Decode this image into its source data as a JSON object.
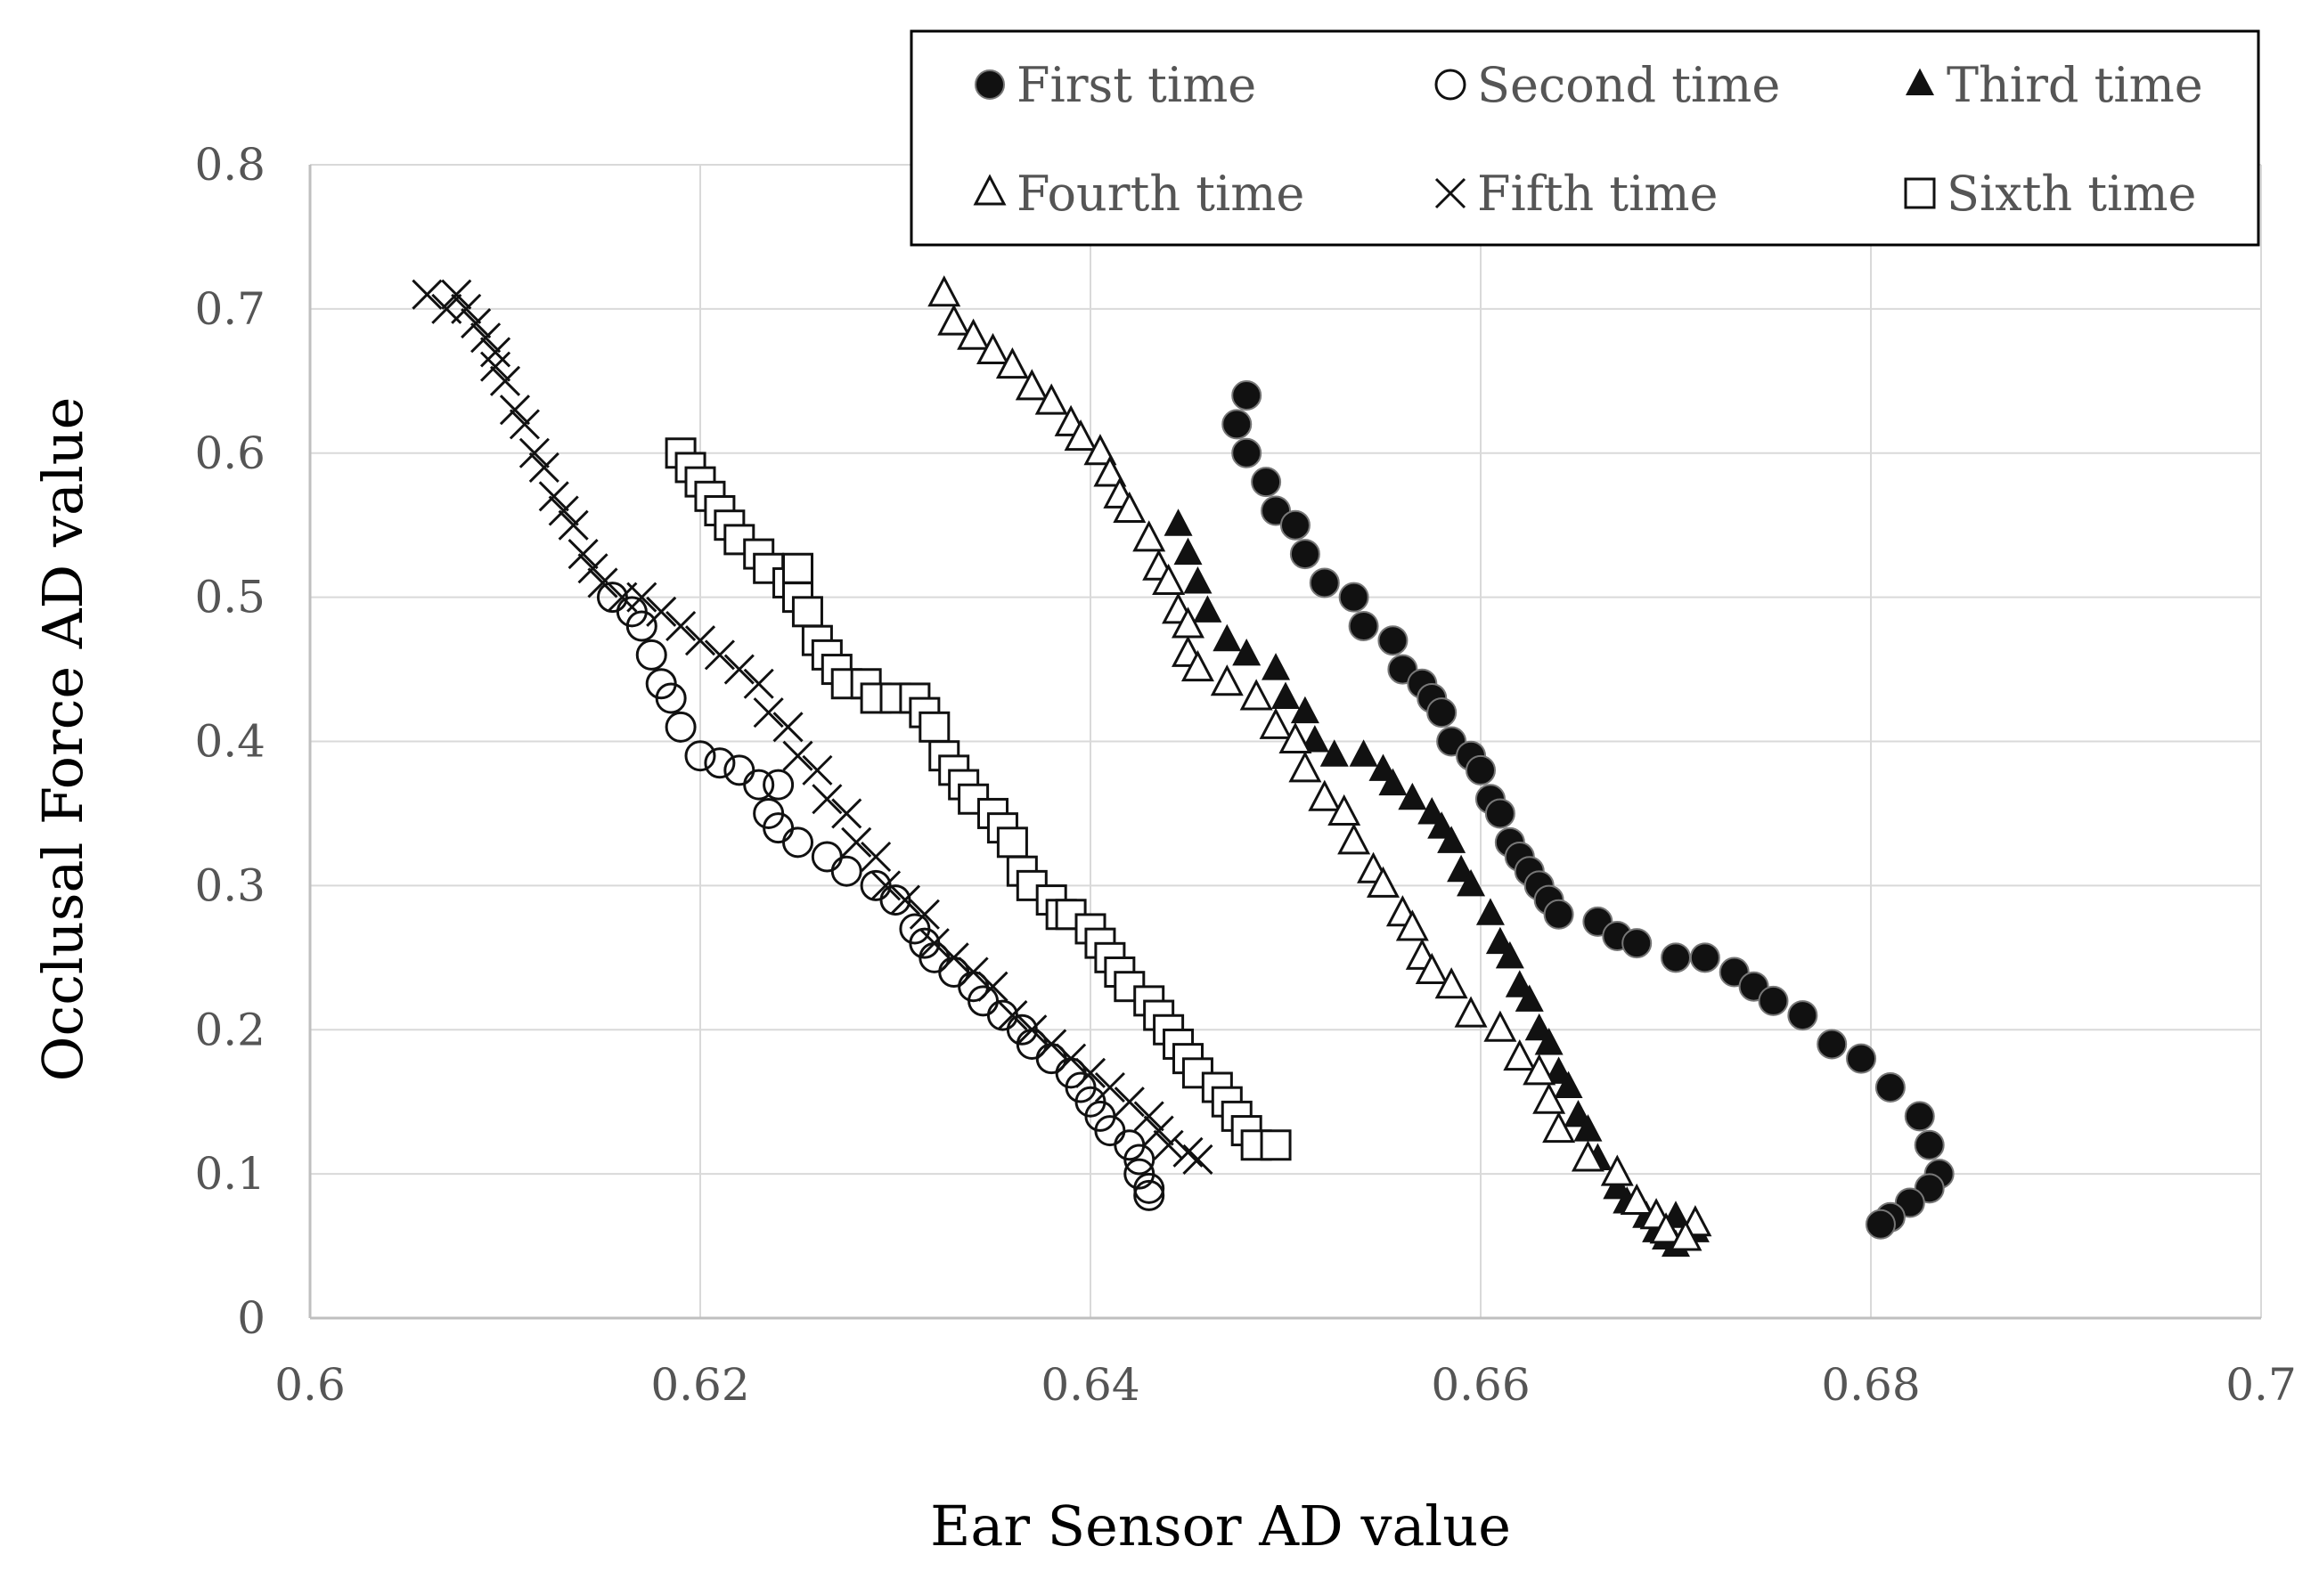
{
  "chart_data": {
    "type": "scatter",
    "xlabel": "Ear Sensor AD value",
    "ylabel": "Occlusal Force AD value",
    "xlim": [
      0.6,
      0.7
    ],
    "ylim": [
      0,
      0.8
    ],
    "x_ticks": [
      "0.6",
      "0.62",
      "0.64",
      "0.66",
      "0.68",
      "0.7"
    ],
    "y_ticks": [
      "0",
      "0.1",
      "0.2",
      "0.3",
      "0.4",
      "0.5",
      "0.6",
      "0.7",
      "0.8"
    ],
    "grid": true,
    "legend_position": "top-right",
    "series": [
      {
        "name": "First time",
        "marker": "filled-circle",
        "color": "#111111",
        "points": [
          [
            0.648,
            0.64
          ],
          [
            0.6475,
            0.62
          ],
          [
            0.648,
            0.6
          ],
          [
            0.649,
            0.58
          ],
          [
            0.6495,
            0.56
          ],
          [
            0.6505,
            0.55
          ],
          [
            0.651,
            0.53
          ],
          [
            0.652,
            0.51
          ],
          [
            0.6535,
            0.5
          ],
          [
            0.654,
            0.48
          ],
          [
            0.6555,
            0.47
          ],
          [
            0.656,
            0.45
          ],
          [
            0.657,
            0.44
          ],
          [
            0.6575,
            0.43
          ],
          [
            0.658,
            0.42
          ],
          [
            0.6585,
            0.4
          ],
          [
            0.6595,
            0.39
          ],
          [
            0.66,
            0.38
          ],
          [
            0.6605,
            0.36
          ],
          [
            0.661,
            0.35
          ],
          [
            0.6615,
            0.33
          ],
          [
            0.662,
            0.32
          ],
          [
            0.6625,
            0.31
          ],
          [
            0.663,
            0.3
          ],
          [
            0.6635,
            0.29
          ],
          [
            0.664,
            0.28
          ],
          [
            0.666,
            0.275
          ],
          [
            0.667,
            0.265
          ],
          [
            0.668,
            0.26
          ],
          [
            0.67,
            0.25
          ],
          [
            0.6715,
            0.25
          ],
          [
            0.673,
            0.24
          ],
          [
            0.674,
            0.23
          ],
          [
            0.675,
            0.22
          ],
          [
            0.6765,
            0.21
          ],
          [
            0.678,
            0.19
          ],
          [
            0.6795,
            0.18
          ],
          [
            0.681,
            0.16
          ],
          [
            0.6825,
            0.14
          ],
          [
            0.683,
            0.12
          ],
          [
            0.6835,
            0.1
          ],
          [
            0.683,
            0.09
          ],
          [
            0.682,
            0.08
          ],
          [
            0.681,
            0.07
          ],
          [
            0.6805,
            0.065
          ]
        ]
      },
      {
        "name": "Second time",
        "marker": "open-circle",
        "color": "#111111",
        "points": [
          [
            0.6155,
            0.5
          ],
          [
            0.6165,
            0.49
          ],
          [
            0.617,
            0.48
          ],
          [
            0.6175,
            0.46
          ],
          [
            0.618,
            0.44
          ],
          [
            0.6185,
            0.43
          ],
          [
            0.619,
            0.41
          ],
          [
            0.62,
            0.39
          ],
          [
            0.621,
            0.385
          ],
          [
            0.622,
            0.38
          ],
          [
            0.623,
            0.37
          ],
          [
            0.624,
            0.37
          ],
          [
            0.6235,
            0.35
          ],
          [
            0.624,
            0.34
          ],
          [
            0.625,
            0.33
          ],
          [
            0.6265,
            0.32
          ],
          [
            0.6275,
            0.31
          ],
          [
            0.629,
            0.3
          ],
          [
            0.63,
            0.29
          ],
          [
            0.631,
            0.27
          ],
          [
            0.6315,
            0.26
          ],
          [
            0.632,
            0.25
          ],
          [
            0.633,
            0.24
          ],
          [
            0.634,
            0.23
          ],
          [
            0.6345,
            0.22
          ],
          [
            0.6355,
            0.21
          ],
          [
            0.6365,
            0.2
          ],
          [
            0.637,
            0.19
          ],
          [
            0.638,
            0.18
          ],
          [
            0.639,
            0.17
          ],
          [
            0.6395,
            0.16
          ],
          [
            0.64,
            0.15
          ],
          [
            0.6405,
            0.14
          ],
          [
            0.641,
            0.13
          ],
          [
            0.642,
            0.12
          ],
          [
            0.6425,
            0.11
          ],
          [
            0.6425,
            0.1
          ],
          [
            0.643,
            0.09
          ],
          [
            0.643,
            0.085
          ]
        ]
      },
      {
        "name": "Third time",
        "marker": "filled-triangle",
        "color": "#111111",
        "points": [
          [
            0.6445,
            0.55
          ],
          [
            0.645,
            0.53
          ],
          [
            0.6455,
            0.51
          ],
          [
            0.646,
            0.49
          ],
          [
            0.647,
            0.47
          ],
          [
            0.648,
            0.46
          ],
          [
            0.6495,
            0.45
          ],
          [
            0.65,
            0.43
          ],
          [
            0.651,
            0.42
          ],
          [
            0.6515,
            0.4
          ],
          [
            0.6525,
            0.39
          ],
          [
            0.654,
            0.39
          ],
          [
            0.655,
            0.38
          ],
          [
            0.6555,
            0.37
          ],
          [
            0.6565,
            0.36
          ],
          [
            0.6575,
            0.35
          ],
          [
            0.658,
            0.34
          ],
          [
            0.6585,
            0.33
          ],
          [
            0.659,
            0.31
          ],
          [
            0.6595,
            0.3
          ],
          [
            0.6605,
            0.28
          ],
          [
            0.661,
            0.26
          ],
          [
            0.6615,
            0.25
          ],
          [
            0.662,
            0.23
          ],
          [
            0.6625,
            0.22
          ],
          [
            0.663,
            0.2
          ],
          [
            0.6635,
            0.19
          ],
          [
            0.664,
            0.17
          ],
          [
            0.6645,
            0.16
          ],
          [
            0.665,
            0.14
          ],
          [
            0.6655,
            0.13
          ],
          [
            0.666,
            0.11
          ],
          [
            0.667,
            0.09
          ],
          [
            0.6675,
            0.08
          ],
          [
            0.6685,
            0.07
          ],
          [
            0.669,
            0.06
          ],
          [
            0.6695,
            0.055
          ],
          [
            0.67,
            0.05
          ],
          [
            0.671,
            0.06
          ],
          [
            0.67,
            0.07
          ]
        ]
      },
      {
        "name": "Fourth time",
        "marker": "open-triangle",
        "color": "#111111",
        "points": [
          [
            0.6325,
            0.71
          ],
          [
            0.633,
            0.69
          ],
          [
            0.634,
            0.68
          ],
          [
            0.635,
            0.67
          ],
          [
            0.636,
            0.66
          ],
          [
            0.637,
            0.645
          ],
          [
            0.638,
            0.635
          ],
          [
            0.639,
            0.62
          ],
          [
            0.6395,
            0.61
          ],
          [
            0.6405,
            0.6
          ],
          [
            0.641,
            0.585
          ],
          [
            0.6415,
            0.57
          ],
          [
            0.642,
            0.56
          ],
          [
            0.643,
            0.54
          ],
          [
            0.6435,
            0.52
          ],
          [
            0.644,
            0.51
          ],
          [
            0.6445,
            0.49
          ],
          [
            0.645,
            0.48
          ],
          [
            0.645,
            0.46
          ],
          [
            0.6455,
            0.45
          ],
          [
            0.647,
            0.44
          ],
          [
            0.6485,
            0.43
          ],
          [
            0.6495,
            0.41
          ],
          [
            0.6505,
            0.4
          ],
          [
            0.651,
            0.38
          ],
          [
            0.652,
            0.36
          ],
          [
            0.653,
            0.35
          ],
          [
            0.6535,
            0.33
          ],
          [
            0.6545,
            0.31
          ],
          [
            0.655,
            0.3
          ],
          [
            0.656,
            0.28
          ],
          [
            0.6565,
            0.27
          ],
          [
            0.657,
            0.25
          ],
          [
            0.6575,
            0.24
          ],
          [
            0.6585,
            0.23
          ],
          [
            0.6595,
            0.21
          ],
          [
            0.661,
            0.2
          ],
          [
            0.662,
            0.18
          ],
          [
            0.663,
            0.17
          ],
          [
            0.6635,
            0.15
          ],
          [
            0.664,
            0.13
          ],
          [
            0.6655,
            0.11
          ],
          [
            0.667,
            0.1
          ],
          [
            0.668,
            0.08
          ],
          [
            0.669,
            0.07
          ],
          [
            0.6695,
            0.06
          ],
          [
            0.671,
            0.065
          ],
          [
            0.6705,
            0.055
          ]
        ]
      },
      {
        "name": "Fifth time",
        "marker": "cross",
        "color": "#111111",
        "points": [
          [
            0.606,
            0.71
          ],
          [
            0.607,
            0.7
          ],
          [
            0.6075,
            0.71
          ],
          [
            0.608,
            0.7
          ],
          [
            0.6085,
            0.69
          ],
          [
            0.609,
            0.68
          ],
          [
            0.6095,
            0.67
          ],
          [
            0.6095,
            0.66
          ],
          [
            0.61,
            0.65
          ],
          [
            0.6105,
            0.63
          ],
          [
            0.611,
            0.62
          ],
          [
            0.6115,
            0.6
          ],
          [
            0.612,
            0.59
          ],
          [
            0.6125,
            0.57
          ],
          [
            0.613,
            0.56
          ],
          [
            0.6135,
            0.55
          ],
          [
            0.614,
            0.53
          ],
          [
            0.6145,
            0.52
          ],
          [
            0.615,
            0.51
          ],
          [
            0.616,
            0.5
          ],
          [
            0.617,
            0.5
          ],
          [
            0.618,
            0.49
          ],
          [
            0.619,
            0.48
          ],
          [
            0.62,
            0.47
          ],
          [
            0.621,
            0.46
          ],
          [
            0.622,
            0.45
          ],
          [
            0.623,
            0.44
          ],
          [
            0.6235,
            0.42
          ],
          [
            0.6245,
            0.41
          ],
          [
            0.625,
            0.39
          ],
          [
            0.626,
            0.38
          ],
          [
            0.6265,
            0.36
          ],
          [
            0.6275,
            0.35
          ],
          [
            0.628,
            0.33
          ],
          [
            0.629,
            0.32
          ],
          [
            0.6295,
            0.3
          ],
          [
            0.6305,
            0.29
          ],
          [
            0.6315,
            0.28
          ],
          [
            0.632,
            0.26
          ],
          [
            0.633,
            0.25
          ],
          [
            0.634,
            0.24
          ],
          [
            0.635,
            0.23
          ],
          [
            0.636,
            0.21
          ],
          [
            0.637,
            0.2
          ],
          [
            0.638,
            0.19
          ],
          [
            0.639,
            0.18
          ],
          [
            0.64,
            0.17
          ],
          [
            0.641,
            0.16
          ],
          [
            0.642,
            0.15
          ],
          [
            0.643,
            0.14
          ],
          [
            0.6435,
            0.13
          ],
          [
            0.644,
            0.12
          ],
          [
            0.645,
            0.115
          ],
          [
            0.6455,
            0.11
          ]
        ]
      },
      {
        "name": "Sixth time",
        "marker": "open-square",
        "color": "#111111",
        "points": [
          [
            0.619,
            0.6
          ],
          [
            0.6195,
            0.59
          ],
          [
            0.62,
            0.58
          ],
          [
            0.6205,
            0.57
          ],
          [
            0.621,
            0.56
          ],
          [
            0.6215,
            0.55
          ],
          [
            0.622,
            0.54
          ],
          [
            0.623,
            0.53
          ],
          [
            0.6235,
            0.52
          ],
          [
            0.6245,
            0.51
          ],
          [
            0.625,
            0.5
          ],
          [
            0.625,
            0.52
          ],
          [
            0.6255,
            0.49
          ],
          [
            0.626,
            0.47
          ],
          [
            0.6265,
            0.46
          ],
          [
            0.627,
            0.45
          ],
          [
            0.6275,
            0.44
          ],
          [
            0.6285,
            0.44
          ],
          [
            0.629,
            0.43
          ],
          [
            0.63,
            0.43
          ],
          [
            0.631,
            0.43
          ],
          [
            0.6315,
            0.42
          ],
          [
            0.632,
            0.41
          ],
          [
            0.6325,
            0.39
          ],
          [
            0.633,
            0.38
          ],
          [
            0.6335,
            0.37
          ],
          [
            0.634,
            0.36
          ],
          [
            0.635,
            0.35
          ],
          [
            0.6355,
            0.34
          ],
          [
            0.636,
            0.33
          ],
          [
            0.6365,
            0.31
          ],
          [
            0.637,
            0.3
          ],
          [
            0.638,
            0.29
          ],
          [
            0.6385,
            0.28
          ],
          [
            0.639,
            0.28
          ],
          [
            0.64,
            0.27
          ],
          [
            0.6405,
            0.26
          ],
          [
            0.641,
            0.25
          ],
          [
            0.6415,
            0.24
          ],
          [
            0.642,
            0.23
          ],
          [
            0.643,
            0.22
          ],
          [
            0.6435,
            0.21
          ],
          [
            0.644,
            0.2
          ],
          [
            0.6445,
            0.19
          ],
          [
            0.645,
            0.18
          ],
          [
            0.6455,
            0.17
          ],
          [
            0.6465,
            0.16
          ],
          [
            0.647,
            0.15
          ],
          [
            0.6475,
            0.14
          ],
          [
            0.648,
            0.13
          ],
          [
            0.6485,
            0.12
          ],
          [
            0.6495,
            0.12
          ]
        ]
      }
    ]
  }
}
